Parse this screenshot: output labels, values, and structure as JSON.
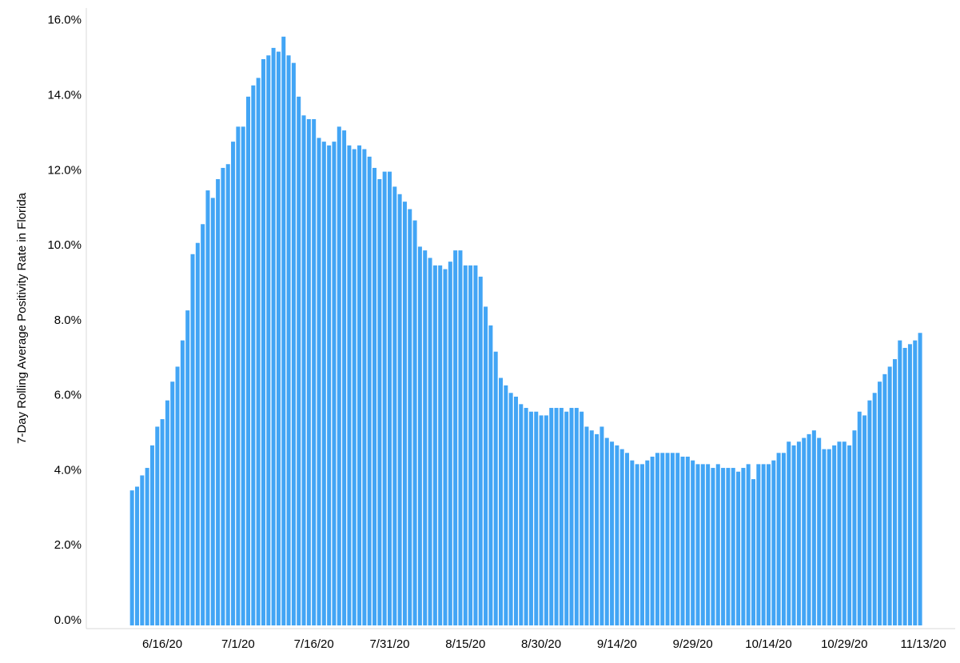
{
  "chart_data": {
    "type": "bar",
    "y_label": "7-Day Rolling Average Positivity Rate in Florida",
    "color": "#42a5f5",
    "categories": [
      null,
      null,
      null,
      null,
      null,
      null,
      "6/16/20",
      null,
      null,
      null,
      null,
      null,
      null,
      null,
      null,
      null,
      null,
      null,
      null,
      null,
      null,
      "7/1/20",
      null,
      null,
      null,
      null,
      null,
      null,
      null,
      null,
      null,
      null,
      null,
      null,
      null,
      null,
      "7/16/20",
      null,
      null,
      null,
      null,
      null,
      null,
      null,
      null,
      null,
      null,
      null,
      null,
      null,
      null,
      "7/31/20",
      null,
      null,
      null,
      null,
      null,
      null,
      null,
      null,
      null,
      null,
      null,
      null,
      null,
      null,
      "8/15/20",
      null,
      null,
      null,
      null,
      null,
      null,
      null,
      null,
      null,
      null,
      null,
      null,
      null,
      null,
      "8/30/20",
      null,
      null,
      null,
      null,
      null,
      null,
      null,
      null,
      null,
      null,
      null,
      null,
      null,
      null,
      "9/14/20",
      null,
      null,
      null,
      null,
      null,
      null,
      null,
      null,
      null,
      null,
      null,
      null,
      null,
      null,
      "9/29/20",
      null,
      null,
      null,
      null,
      null,
      null,
      null,
      null,
      null,
      null,
      null,
      null,
      null,
      null,
      "10/14/20",
      null,
      null,
      null,
      null,
      null,
      null,
      null,
      null,
      null,
      null,
      null,
      null,
      null,
      null,
      "10/29/20",
      null,
      null,
      null,
      null,
      null,
      null,
      null,
      null,
      null,
      null,
      null,
      null,
      null,
      null,
      "11/13/20"
    ],
    "values": [
      3.6,
      3.7,
      4.0,
      4.2,
      4.8,
      5.3,
      5.5,
      6.0,
      6.5,
      6.9,
      7.6,
      8.4,
      9.9,
      10.2,
      10.7,
      11.6,
      11.4,
      11.9,
      12.2,
      12.3,
      12.9,
      13.3,
      13.3,
      14.1,
      14.4,
      14.6,
      15.1,
      15.2,
      15.4,
      15.3,
      15.7,
      15.2,
      15.0,
      14.1,
      13.6,
      13.5,
      13.5,
      13.0,
      12.9,
      12.8,
      12.9,
      13.3,
      13.2,
      12.8,
      12.7,
      12.8,
      12.7,
      12.5,
      12.2,
      11.9,
      12.1,
      12.1,
      11.7,
      11.5,
      11.3,
      11.1,
      10.8,
      10.1,
      10.0,
      9.8,
      9.6,
      9.6,
      9.5,
      9.7,
      10.0,
      10.0,
      9.6,
      9.6,
      9.6,
      9.3,
      8.5,
      8.0,
      7.3,
      6.6,
      6.4,
      6.2,
      6.1,
      5.9,
      5.8,
      5.7,
      5.7,
      5.6,
      5.6,
      5.8,
      5.8,
      5.8,
      5.7,
      5.8,
      5.8,
      5.7,
      5.3,
      5.2,
      5.1,
      5.3,
      5.0,
      4.9,
      4.8,
      4.7,
      4.6,
      4.4,
      4.3,
      4.3,
      4.4,
      4.5,
      4.6,
      4.6,
      4.6,
      4.6,
      4.6,
      4.5,
      4.5,
      4.4,
      4.3,
      4.3,
      4.3,
      4.2,
      4.3,
      4.2,
      4.2,
      4.2,
      4.1,
      4.2,
      4.3,
      3.9,
      4.3,
      4.3,
      4.3,
      4.4,
      4.6,
      4.6,
      4.9,
      4.8,
      4.9,
      5.0,
      5.1,
      5.2,
      5.0,
      4.7,
      4.7,
      4.8,
      4.9,
      4.9,
      4.8,
      5.2,
      5.7,
      5.6,
      6.0,
      6.2,
      6.5,
      6.7,
      6.9,
      7.1,
      7.6,
      7.4,
      7.5,
      7.6,
      7.8
    ],
    "ylim": [
      0,
      16.4
    ],
    "yticks": [
      {
        "value": 0,
        "label": "0.0%"
      },
      {
        "value": 2,
        "label": "2.0%"
      },
      {
        "value": 4,
        "label": "4.0%"
      },
      {
        "value": 6,
        "label": "6.0%"
      },
      {
        "value": 8,
        "label": "8.0%"
      },
      {
        "value": 10,
        "label": "10.0%"
      },
      {
        "value": 12,
        "label": "12.0%"
      },
      {
        "value": 14,
        "label": "14.0%"
      },
      {
        "value": 16,
        "label": "16.0%"
      }
    ],
    "grid": false
  }
}
